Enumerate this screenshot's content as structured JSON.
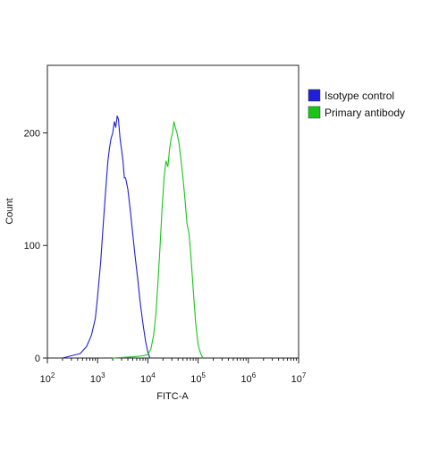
{
  "chart_data": {
    "type": "line",
    "title": "",
    "xlabel": "FITC-A",
    "ylabel": "Count",
    "x_scale": "log",
    "xlim": [
      100,
      10000000
    ],
    "ylim": [
      0,
      260
    ],
    "grid": false,
    "legend_position": "top-right",
    "x_ticks": [
      {
        "value": 100,
        "base": "10",
        "exp": "2"
      },
      {
        "value": 1000,
        "base": "10",
        "exp": "3"
      },
      {
        "value": 10000,
        "base": "10",
        "exp": "4"
      },
      {
        "value": 100000,
        "base": "10",
        "exp": "5"
      },
      {
        "value": 1000000,
        "base": "10",
        "exp": "6"
      },
      {
        "value": 10000000,
        "base": "10",
        "exp": "7"
      }
    ],
    "y_ticks": [
      {
        "value": 0,
        "label": "0"
      },
      {
        "value": 100,
        "label": "100"
      },
      {
        "value": 200,
        "label": "200"
      }
    ],
    "series": [
      {
        "name": "Isotype control",
        "color": "#1f1fd6",
        "x": [
          200,
          300,
          450,
          600,
          750,
          900,
          1000,
          1150,
          1300,
          1450,
          1600,
          1700,
          1850,
          2000,
          2150,
          2300,
          2450,
          2600,
          2800,
          3000,
          3200,
          3400,
          3600,
          4000,
          4500,
          5000,
          5600,
          6300,
          7000,
          8000,
          9000,
          10000,
          11000
        ],
        "y": [
          0,
          2,
          4,
          10,
          20,
          35,
          55,
          85,
          120,
          150,
          175,
          185,
          195,
          200,
          210,
          205,
          215,
          212,
          195,
          185,
          175,
          160,
          160,
          150,
          130,
          110,
          90,
          70,
          50,
          30,
          15,
          5,
          0
        ]
      },
      {
        "name": "Primary antibody",
        "color": "#19c419",
        "x": [
          2000,
          5000,
          8000,
          10000,
          11500,
          13000,
          14500,
          16000,
          17500,
          19000,
          21000,
          23000,
          25000,
          27000,
          29000,
          31000,
          33000,
          35000,
          38000,
          42000,
          46000,
          50000,
          55000,
          60000,
          66000,
          72000,
          80000,
          90000,
          100000,
          112000,
          125000
        ],
        "y": [
          0,
          1,
          2,
          3,
          8,
          20,
          40,
          70,
          100,
          130,
          160,
          175,
          170,
          185,
          195,
          200,
          210,
          205,
          200,
          190,
          175,
          160,
          140,
          120,
          110,
          90,
          60,
          30,
          12,
          4,
          0
        ]
      }
    ]
  }
}
